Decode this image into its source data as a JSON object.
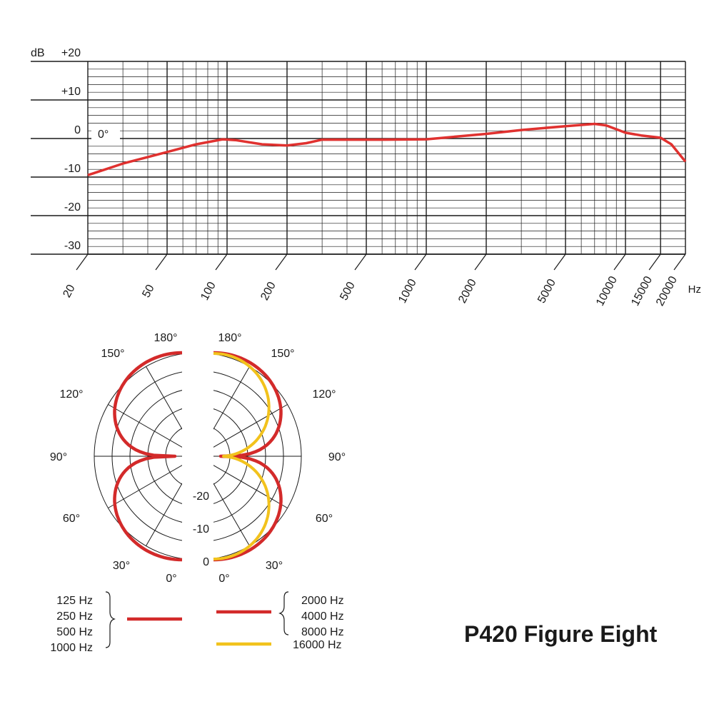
{
  "title": "P420 Figure Eight",
  "colors": {
    "low_band": "#d32a2a",
    "high_band": "#f2c21c",
    "grid": "#1a1a1a",
    "freq_curve": "#e0312f"
  },
  "chart_data": [
    {
      "type": "line",
      "xscale": "log",
      "xlim": [
        20,
        20000
      ],
      "ylim": [
        -30,
        20
      ],
      "yunit": "dB",
      "xunit": "Hz",
      "yticks": [
        "+20",
        "+10",
        "0",
        "-10",
        "-20",
        "-30"
      ],
      "ytick_values": [
        20,
        10,
        0,
        -10,
        -20,
        -30
      ],
      "xticks": [
        "20",
        "50",
        "100",
        "200",
        "500",
        "1000",
        "2000",
        "5000",
        "10000",
        "15000",
        "20000"
      ],
      "xtick_values": [
        20,
        50,
        100,
        200,
        500,
        1000,
        2000,
        5000,
        10000,
        15000,
        20000
      ],
      "annotation": "0°",
      "grid": true,
      "series": [
        {
          "x": [
            20,
            30,
            50,
            70,
            95,
            110,
            150,
            200,
            250,
            300,
            400,
            600,
            1000,
            2000,
            3000,
            5000,
            7000,
            8000,
            10000,
            12000,
            15000,
            17000,
            20000
          ],
          "y": [
            -9.5,
            -6.5,
            -3.5,
            -1.5,
            -0.2,
            -0.4,
            -1.5,
            -1.8,
            -1.2,
            -0.3,
            -0.3,
            -0.3,
            -0.2,
            1.2,
            2.2,
            3.2,
            3.8,
            3.4,
            1.5,
            0.8,
            0.2,
            -1.5,
            -6
          ]
        }
      ]
    },
    {
      "type": "polar",
      "angle_labels_left": [
        "180°",
        "150°",
        "120°",
        "90°",
        "60°",
        "30°",
        "0°"
      ],
      "angle_labels_right": [
        "180°",
        "150°",
        "120°",
        "90°",
        "60°",
        "30°",
        "0°"
      ],
      "radial_labels": [
        "-20",
        "-10",
        "0"
      ],
      "radial_label_values": [
        -20,
        -10,
        0
      ],
      "series": [
        {
          "side": "left",
          "legend": [
            "125 Hz",
            "250 Hz",
            "500 Hz",
            "1000 Hz"
          ],
          "pattern": "figure-eight",
          "color": "#d32a2a"
        },
        {
          "side": "right",
          "legend": [
            "2000 Hz",
            "4000 Hz",
            "8000 Hz"
          ],
          "pattern": "figure-eight",
          "color": "#d32a2a"
        },
        {
          "side": "right",
          "legend": [
            "16000 Hz"
          ],
          "pattern": "figure-eight-narrow",
          "color": "#f2c21c"
        }
      ]
    }
  ]
}
